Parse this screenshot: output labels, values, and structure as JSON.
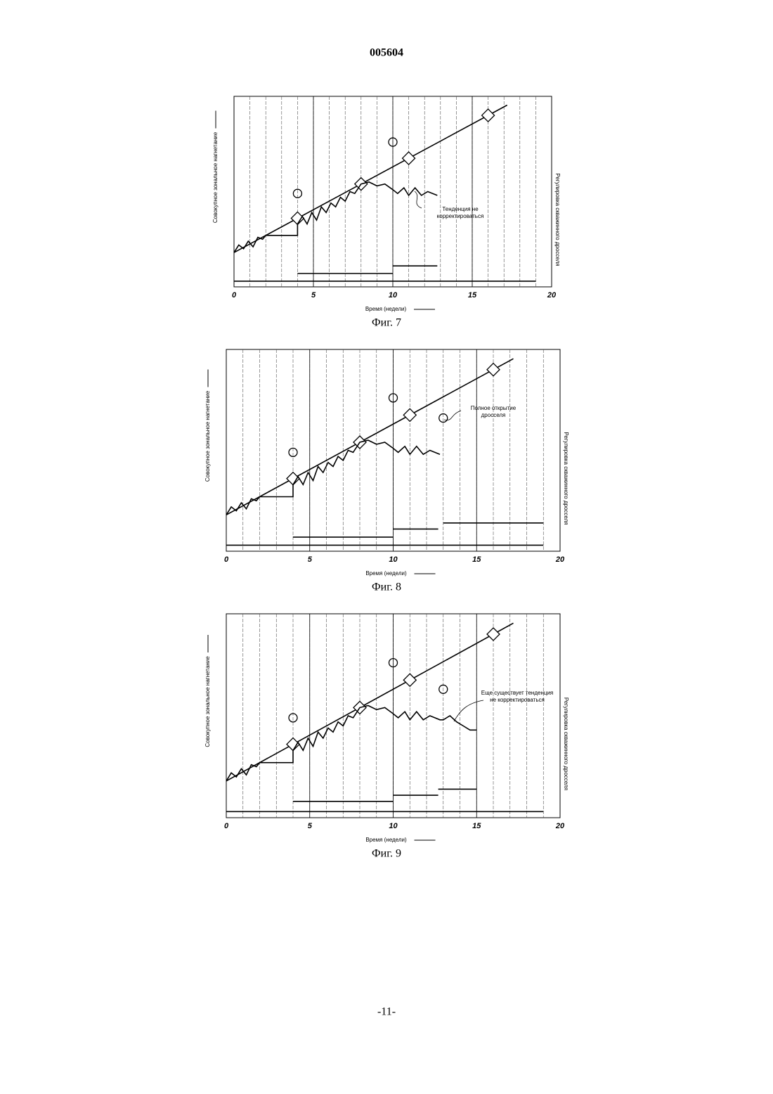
{
  "header": "005604",
  "footer": "-11-",
  "chart_data": [
    {
      "type": "line",
      "caption": "Фиг. 7",
      "xlabel": "Время (недели)",
      "ylabel": "Совокупное зональное нагнетание",
      "y2label": "Регулировка скважинного дросселя",
      "annotation": [
        "Тенденция не",
        "корректироваться"
      ],
      "xlim": [
        0,
        20
      ],
      "xticks": [
        0,
        5,
        10,
        15,
        20
      ],
      "ylim": [
        0,
        100
      ],
      "grid": true,
      "series": [
        {
          "style": "line",
          "color": "#000",
          "x": [
            0,
            17.2
          ],
          "values": [
            18,
            95.4
          ]
        },
        {
          "style": "diamond",
          "color": "#000",
          "x": [
            4,
            8,
            11,
            16
          ],
          "values": [
            36,
            54,
            67.5,
            90
          ]
        },
        {
          "style": "line",
          "color": "#000",
          "x": [
            0,
            0.3,
            0.6,
            0.9,
            1.2,
            1.5,
            1.8,
            2,
            3,
            4,
            4,
            4.3,
            4.6,
            4.9,
            5.2,
            5.5,
            5.8,
            6.1,
            6.4,
            6.7,
            7,
            7.3,
            7.6,
            8,
            8.5,
            9,
            9.5,
            10,
            10.3,
            10.7,
            11,
            11.4,
            11.8,
            12.2,
            12.8
          ],
          "values": [
            18,
            22,
            20,
            24,
            21,
            26,
            25,
            27,
            27,
            27,
            33,
            37,
            33,
            39,
            35,
            42,
            39,
            44,
            42,
            47,
            45,
            50,
            49,
            54,
            55,
            53,
            54,
            51,
            49,
            52,
            48,
            52,
            48,
            50,
            48
          ]
        },
        {
          "style": "circle",
          "color": "#000",
          "x": [
            4,
            10
          ],
          "values": [
            49,
            76
          ]
        },
        {
          "style": "line",
          "color": "#000",
          "x": [
            0,
            19,
            null,
            4,
            10,
            null,
            10,
            12.8
          ],
          "values": [
            3,
            3,
            null,
            7,
            7,
            null,
            11,
            11
          ]
        }
      ]
    },
    {
      "type": "line",
      "caption": "Фиг. 8",
      "xlabel": "Время (недели)",
      "ylabel": "Совокупное зональное нагнетание",
      "y2label": "Регулировка скважинного дросселя",
      "annotation": [
        "Полное открытие",
        "дросселя"
      ],
      "xlim": [
        0,
        20
      ],
      "xticks": [
        0,
        5,
        10,
        15,
        20
      ],
      "ylim": [
        0,
        100
      ],
      "grid": true,
      "series": [
        {
          "style": "line",
          "color": "#000",
          "x": [
            0,
            17.2
          ],
          "values": [
            18,
            95.4
          ]
        },
        {
          "style": "diamond",
          "color": "#000",
          "x": [
            4,
            8,
            11,
            16
          ],
          "values": [
            36,
            54,
            67.5,
            90
          ]
        },
        {
          "style": "line",
          "color": "#000",
          "x": [
            0,
            0.3,
            0.6,
            0.9,
            1.2,
            1.5,
            1.8,
            2,
            3,
            4,
            4,
            4.3,
            4.6,
            4.9,
            5.2,
            5.5,
            5.8,
            6.1,
            6.4,
            6.7,
            7,
            7.3,
            7.6,
            8,
            8.5,
            9,
            9.5,
            10,
            10.3,
            10.7,
            11,
            11.4,
            11.8,
            12.2,
            12.8
          ],
          "values": [
            18,
            22,
            20,
            24,
            21,
            26,
            25,
            27,
            27,
            27,
            33,
            37,
            33,
            39,
            35,
            42,
            39,
            44,
            42,
            47,
            45,
            50,
            49,
            54,
            55,
            53,
            54,
            51,
            49,
            52,
            48,
            52,
            48,
            50,
            48
          ]
        },
        {
          "style": "circle",
          "color": "#000",
          "x": [
            4,
            10,
            13
          ],
          "values": [
            49,
            76,
            66
          ]
        },
        {
          "style": "line",
          "color": "#000",
          "x": [
            0,
            19,
            null,
            4,
            10,
            null,
            10,
            12.7,
            null,
            13,
            19
          ],
          "values": [
            3,
            3,
            null,
            7,
            7,
            null,
            11,
            11,
            null,
            14,
            14
          ]
        }
      ]
    },
    {
      "type": "line",
      "caption": "Фиг. 9",
      "xlabel": "Время (недели)",
      "ylabel": "Совокупное зональное нагнетание",
      "y2label": "Регулировка скважинного дросселя",
      "annotation": [
        "Еще существует тенденция",
        "не корректироваться"
      ],
      "xlim": [
        0,
        20
      ],
      "xticks": [
        0,
        5,
        10,
        15,
        20
      ],
      "ylim": [
        0,
        100
      ],
      "grid": true,
      "series": [
        {
          "style": "line",
          "color": "#000",
          "x": [
            0,
            17.2
          ],
          "values": [
            18,
            95.4
          ]
        },
        {
          "style": "diamond",
          "color": "#000",
          "x": [
            4,
            8,
            11,
            16
          ],
          "values": [
            36,
            54,
            67.5,
            90
          ]
        },
        {
          "style": "line",
          "color": "#000",
          "x": [
            0,
            0.3,
            0.6,
            0.9,
            1.2,
            1.5,
            1.8,
            2,
            3,
            4,
            4,
            4.3,
            4.6,
            4.9,
            5.2,
            5.5,
            5.8,
            6.1,
            6.4,
            6.7,
            7,
            7.3,
            7.6,
            8,
            8.5,
            9,
            9.5,
            10,
            10.3,
            10.7,
            11,
            11.4,
            11.8,
            12.2,
            12.8,
            13,
            13.4,
            13.8,
            14.2,
            14.6,
            15
          ],
          "values": [
            18,
            22,
            20,
            24,
            21,
            26,
            25,
            27,
            27,
            27,
            33,
            37,
            33,
            39,
            35,
            42,
            39,
            44,
            42,
            47,
            45,
            50,
            49,
            54,
            55,
            53,
            54,
            51,
            49,
            52,
            48,
            52,
            48,
            50,
            48,
            48,
            50,
            47,
            45,
            43,
            43
          ]
        },
        {
          "style": "circle",
          "color": "#000",
          "x": [
            4,
            10,
            13
          ],
          "values": [
            49,
            76,
            63
          ]
        },
        {
          "style": "line",
          "color": "#000",
          "x": [
            0,
            19,
            null,
            4,
            10,
            null,
            10,
            12.7,
            null,
            12.7,
            15
          ],
          "values": [
            3,
            3,
            null,
            8,
            8,
            null,
            11,
            11,
            null,
            14,
            14
          ]
        }
      ]
    }
  ]
}
